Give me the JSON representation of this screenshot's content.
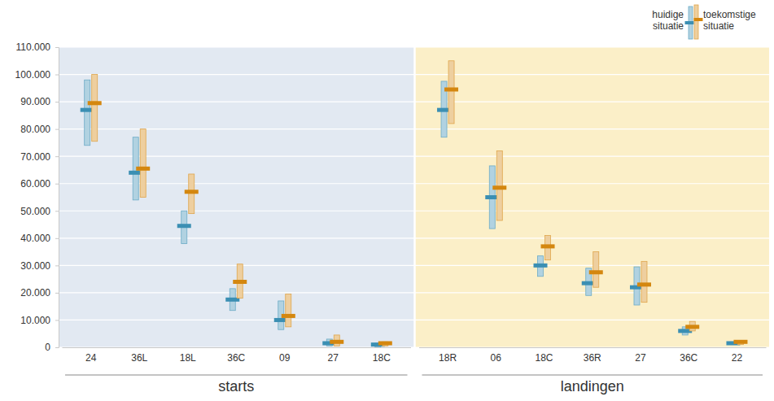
{
  "chart_data": {
    "type": "range",
    "legend": "top-right",
    "grid": true,
    "ylim": [
      0,
      110000
    ],
    "yticks": [
      0,
      {
        "value": 10000,
        "label": "10.000"
      },
      {
        "value": 20000,
        "label": "20.000"
      },
      {
        "value": 30000,
        "label": "30.000"
      },
      {
        "value": 40000,
        "label": "40.000"
      },
      {
        "value": 50000,
        "label": "50.000"
      },
      {
        "value": 60000,
        "label": "60.000"
      },
      {
        "value": 70000,
        "label": "70.000"
      },
      {
        "value": 80000,
        "label": "80.000"
      },
      {
        "value": 90000,
        "label": "90.000"
      },
      {
        "value": 100000,
        "label": "100.000"
      },
      {
        "value": 110000,
        "label": "110.000"
      }
    ],
    "series": [
      {
        "name": "huidige situatie",
        "color": "#3b8fb3"
      },
      {
        "name": "toekomstige situatie",
        "color": "#d4870f"
      }
    ],
    "panels": [
      {
        "label": "starts",
        "color": "#e2e9f2",
        "categories": [
          "24",
          "36L",
          "18L",
          "36C",
          "09",
          "27",
          "18C"
        ],
        "series": [
          {
            "values": [
              87000,
              64000,
              44500,
              17500,
              10000,
              1500,
              1000
            ],
            "low": [
              74000,
              54000,
              38000,
              13500,
              6500,
              500,
              0
            ],
            "high": [
              98000,
              77000,
              50000,
              21500,
              17000,
              3000,
              1500
            ]
          },
          {
            "values": [
              89500,
              65500,
              57000,
              24000,
              11500,
              2000,
              1500
            ],
            "low": [
              75500,
              55000,
              49000,
              18000,
              7500,
              500,
              500
            ],
            "high": [
              100000,
              80000,
              63500,
              30500,
              19500,
              4500,
              2000
            ]
          }
        ]
      },
      {
        "label": "landingen",
        "color": "#fbefc8",
        "categories": [
          "18R",
          "06",
          "18C",
          "36R",
          "27",
          "36C",
          "22"
        ],
        "series": [
          {
            "values": [
              87000,
              55000,
              30000,
              23500,
              22000,
              6000,
              1500
            ],
            "low": [
              77000,
              43500,
              26000,
              19000,
              15500,
              4500,
              1000
            ],
            "high": [
              97500,
              66500,
              33500,
              29000,
              29500,
              7500,
              2000
            ]
          },
          {
            "values": [
              94500,
              58500,
              37000,
              27500,
              23000,
              7500,
              2000
            ],
            "low": [
              82000,
              46500,
              32000,
              22000,
              16500,
              6000,
              1000
            ],
            "high": [
              105000,
              72000,
              41000,
              35000,
              31500,
              9500,
              2500
            ]
          }
        ]
      }
    ]
  }
}
